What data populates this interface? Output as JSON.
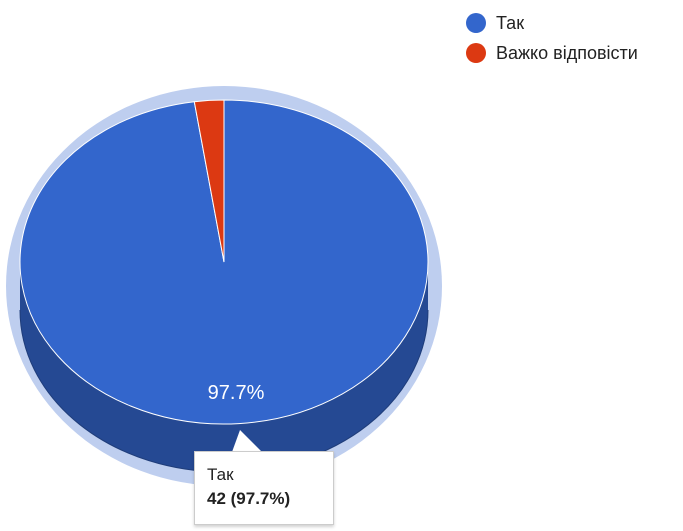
{
  "chart_data": {
    "type": "pie",
    "is_3d": true,
    "legend_position": "top-right",
    "slices": [
      {
        "label": "Так",
        "value": 42,
        "percent": 97.7,
        "color": "#3366cc"
      },
      {
        "label": "Важко відповісти",
        "value": 1,
        "percent": 2.3,
        "color": "#dc3912"
      }
    ],
    "data_labels": [
      "97.7%"
    ]
  },
  "tooltip": {
    "label": "Так",
    "value": "42 (97.7%)"
  }
}
